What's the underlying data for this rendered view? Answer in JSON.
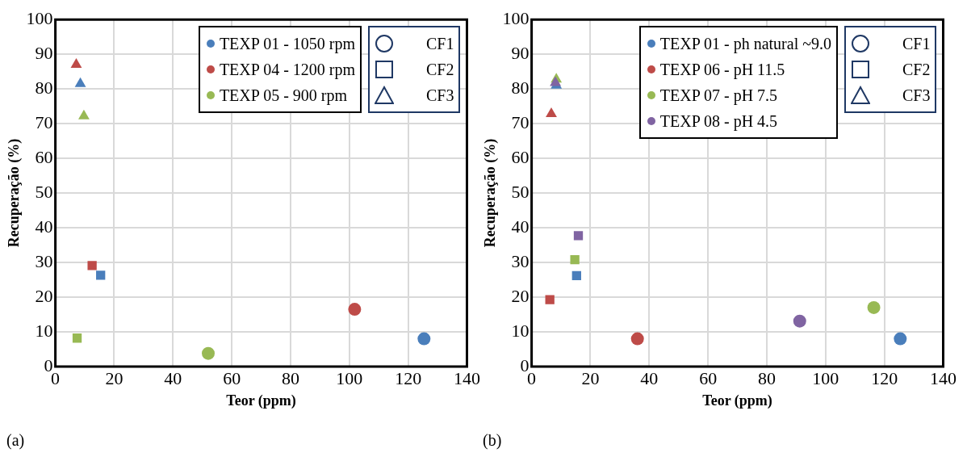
{
  "chart_data": [
    {
      "type": "scatter",
      "xlabel": "Teor (ppm)",
      "ylabel": "Recuperação (%)",
      "xlim": [
        0,
        140
      ],
      "xticks": [
        0,
        20,
        40,
        60,
        80,
        100,
        120,
        140
      ],
      "ylim": [
        0,
        100
      ],
      "yticks": [
        0,
        10,
        20,
        30,
        40,
        50,
        60,
        70,
        80,
        90,
        100
      ],
      "grid": true,
      "legend": "top right",
      "marker": [
        "circle",
        "square",
        "triangle"
      ],
      "annotations": [
        "CF1",
        "CF2",
        "CF3",
        "(a)"
      ],
      "series": [
        {
          "name": "TEXP 01 - 1050 rpm",
          "color": "#4a7ebb",
          "x": [
            125.4,
            15.4,
            8.5
          ],
          "values": [
            8,
            26.3,
            81.5
          ]
        },
        {
          "name": "TEXP 04 - 1200 rpm",
          "color": "#be4b48",
          "x": [
            101.8,
            12.5,
            7.1
          ],
          "values": [
            16.5,
            29.1,
            87
          ]
        },
        {
          "name": "TEXP 05 - 900 rpm",
          "color": "#98b954",
          "x": [
            52,
            7.4,
            9.7
          ],
          "values": [
            3.8,
            8.2,
            72.2
          ]
        }
      ]
    },
    {
      "type": "scatter",
      "xlabel": "Teor (ppm)",
      "ylabel": "Recuperação (%)",
      "xlim": [
        0,
        140
      ],
      "xticks": [
        0,
        20,
        40,
        60,
        80,
        100,
        120,
        140
      ],
      "ylim": [
        0,
        100
      ],
      "yticks": [
        0,
        10,
        20,
        30,
        40,
        50,
        60,
        70,
        80,
        90,
        100
      ],
      "grid": true,
      "legend": "top right",
      "marker": [
        "circle",
        "square",
        "triangle"
      ],
      "annotations": [
        "CF1",
        "CF2",
        "CF3",
        "(b)"
      ],
      "series": [
        {
          "name": "TEXP 01 - ph natural ~9.0",
          "color": "#4a7ebb",
          "x": [
            125.4,
            15.3,
            8.4
          ],
          "values": [
            8,
            26.2,
            81
          ]
        },
        {
          "name": "TEXP 06 - pH 11.5",
          "color": "#be4b48",
          "x": [
            36,
            6.2,
            6.7
          ],
          "values": [
            8,
            19.3,
            72.8
          ]
        },
        {
          "name": "TEXP 07 - pH 7.5",
          "color": "#98b954",
          "x": [
            116.4,
            14.7,
            8.4
          ],
          "values": [
            17,
            30.8,
            82.8
          ]
        },
        {
          "name": "TEXP 08 - pH 4.5",
          "color": "#8064a2",
          "x": [
            91.2,
            15.9,
            8.1
          ],
          "values": [
            13.1,
            37.7,
            81.8
          ]
        }
      ]
    }
  ]
}
